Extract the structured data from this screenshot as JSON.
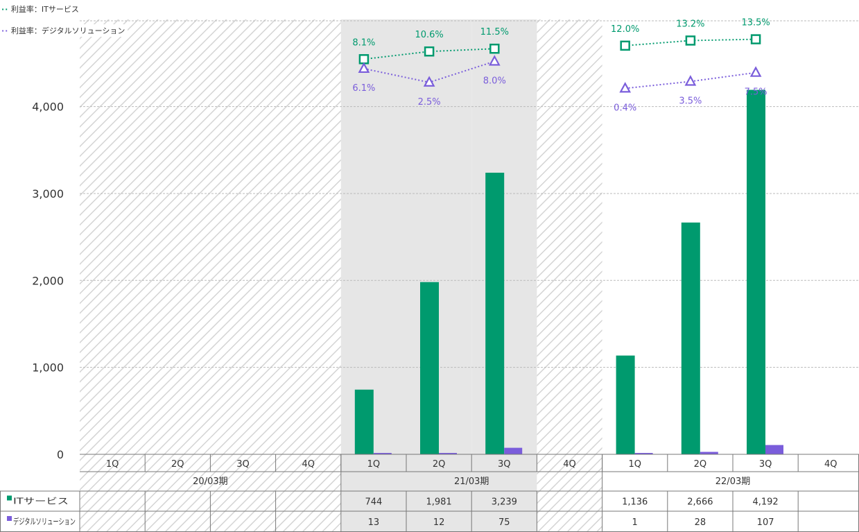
{
  "chart_data": {
    "type": "bar",
    "yaxis": {
      "ylim": [
        0,
        4000
      ],
      "ticks": [
        "0",
        "1,000",
        "2,000",
        "3,000",
        "4,000"
      ],
      "tick_values": [
        0,
        1000,
        2000,
        3000,
        4000
      ],
      "grid": true
    },
    "categories": [
      "1Q",
      "2Q",
      "3Q",
      "4Q",
      "1Q",
      "2Q",
      "3Q",
      "4Q",
      "1Q",
      "2Q",
      "3Q",
      "4Q"
    ],
    "periods": [
      {
        "label": "20/03期",
        "quarters": 4
      },
      {
        "label": "21/03期",
        "quarters": 4
      },
      {
        "label": "22/03期",
        "quarters": 4
      }
    ],
    "series": [
      {
        "name": "ITサービス",
        "color": "#009a6e",
        "values": [
          null,
          null,
          null,
          null,
          744,
          1981,
          3239,
          null,
          1136,
          2666,
          4192,
          null
        ],
        "table_labels": [
          "",
          "",
          "",
          "",
          "744",
          "1,981",
          "3,239",
          "",
          "1,136",
          "2,666",
          "4,192",
          ""
        ]
      },
      {
        "name": "デジタルソリューション",
        "color": "#7a5ddb",
        "values": [
          null,
          null,
          null,
          null,
          13,
          12,
          75,
          null,
          1,
          28,
          107,
          null
        ],
        "table_labels": [
          "",
          "",
          "",
          "",
          "13",
          "12",
          "75",
          "",
          "1",
          "28",
          "107",
          ""
        ]
      }
    ],
    "lines": [
      {
        "name": "利益率：ITサービス",
        "color": "#009a6e",
        "marker": "square",
        "values": [
          null,
          null,
          null,
          null,
          8.1,
          10.6,
          11.5,
          null,
          12.0,
          13.2,
          13.5,
          null
        ],
        "labels": [
          "",
          "",
          "",
          "",
          "8.1%",
          "10.6%",
          "11.5%",
          "",
          "12.0%",
          "13.2%",
          "13.5%",
          ""
        ]
      },
      {
        "name": "利益率：デジタルソリューション",
        "color": "#7a5ddb",
        "marker": "triangle",
        "values": [
          null,
          null,
          null,
          null,
          6.1,
          2.5,
          8.0,
          null,
          0.4,
          3.5,
          7.5,
          null
        ],
        "labels": [
          "",
          "",
          "",
          "",
          "6.1%",
          "2.5%",
          "8.0%",
          "",
          "0.4%",
          "3.5%",
          "7.5%",
          ""
        ]
      }
    ],
    "legend_position": "top-left",
    "hatched_categories": [
      0,
      1,
      2,
      3,
      7
    ],
    "shaded_categories": [
      4,
      5,
      6
    ],
    "colors": {
      "bar_it": "#009a6e",
      "bar_digital": "#7a5ddb",
      "shade": "#e6e6e6",
      "hatch": "#d4d4d4",
      "grid": "#bbbbbb"
    }
  }
}
